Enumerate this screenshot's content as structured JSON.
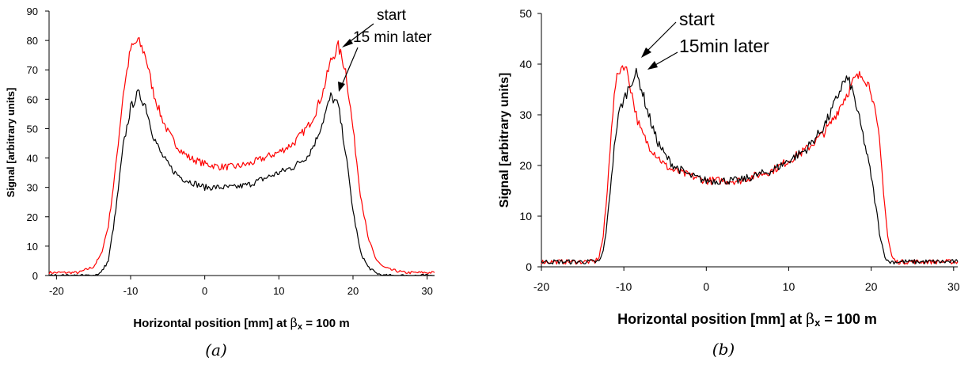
{
  "chart_data": [
    {
      "type": "line",
      "panel": "a",
      "caption": "(a)",
      "xlabel_main": "Horizontal position [mm] at ",
      "xlabel_beta": "β",
      "xlabel_sub": "x",
      "xlabel_tail": " = 100 m",
      "ylabel": "Signal [arbitrary units]",
      "xlim": [
        -21,
        31
      ],
      "ylim": [
        0,
        90
      ],
      "xticks": [
        "-20",
        "-10",
        "0",
        "10",
        "20",
        "30"
      ],
      "yticks": [
        "0",
        "10",
        "20",
        "30",
        "40",
        "50",
        "60",
        "70",
        "80",
        "90"
      ],
      "grid": false,
      "annotations": [
        "start",
        "15 min later"
      ],
      "series": [
        {
          "name": "start",
          "color": "#ff0000",
          "x": [
            -21,
            -17,
            -15,
            -14,
            -13,
            -12,
            -11,
            -10,
            -9,
            -8,
            -7,
            -6,
            -5,
            -4,
            -3,
            -2,
            0,
            2,
            4,
            6,
            8,
            10,
            12,
            14,
            15,
            16,
            17,
            18,
            19,
            20,
            21,
            22,
            23,
            24,
            25,
            27,
            31
          ],
          "y": [
            1,
            1,
            3,
            7,
            17,
            37,
            62,
            77,
            80,
            75,
            63,
            55,
            49,
            45,
            42,
            40,
            38,
            37,
            37,
            38,
            40,
            42,
            45,
            51,
            56,
            63,
            73,
            78,
            70,
            50,
            28,
            13,
            6,
            3,
            2,
            1,
            1
          ]
        },
        {
          "name": "15 min later",
          "color": "#000000",
          "x": [
            -21,
            -15,
            -14,
            -13,
            -12,
            -11,
            -10,
            -9,
            -8,
            -7,
            -6,
            -5,
            -4,
            -3,
            -2,
            0,
            2,
            4,
            6,
            8,
            10,
            12,
            14,
            15,
            16,
            17,
            18,
            19,
            20,
            21,
            22,
            23,
            24,
            31
          ],
          "y": [
            0,
            0,
            1,
            5,
            22,
            44,
            57,
            62,
            58,
            48,
            42,
            38,
            35,
            33,
            32,
            30,
            30,
            30,
            31,
            33,
            35,
            37,
            41,
            46,
            53,
            61,
            58,
            42,
            22,
            8,
            3,
            1,
            0,
            0
          ]
        }
      ]
    },
    {
      "type": "line",
      "panel": "b",
      "caption": "(b)",
      "xlabel_main": "Horizontal position [mm] at ",
      "xlabel_beta": "β",
      "xlabel_sub": "x",
      "xlabel_tail": " = 100 m",
      "ylabel": "Signal [arbitrary units]",
      "xlim": [
        -20,
        30.5
      ],
      "ylim": [
        0,
        50
      ],
      "xticks": [
        "-20",
        "-10",
        "0",
        "10",
        "20",
        "30"
      ],
      "yticks": [
        "0",
        "10",
        "20",
        "30",
        "40",
        "50"
      ],
      "grid": false,
      "annotations": [
        "start",
        "15min later"
      ],
      "series": [
        {
          "name": "start",
          "color": "#ff0000",
          "x": [
            -20,
            -13.5,
            -13,
            -12.5,
            -12,
            -11.5,
            -11,
            -10.5,
            -10,
            -9.5,
            -9,
            -8.5,
            -8,
            -7,
            -6,
            -5,
            -4,
            -2,
            0,
            2,
            4,
            6,
            8,
            10,
            12,
            14,
            15,
            16,
            17,
            18,
            19,
            20,
            21,
            21.5,
            22,
            22.5,
            23,
            30.5
          ],
          "y": [
            1,
            1,
            2,
            6,
            15,
            28,
            36,
            39,
            40,
            38,
            34,
            30,
            27,
            24,
            22,
            20,
            19,
            18,
            17,
            17,
            17,
            18,
            19,
            21,
            23,
            26,
            28,
            31,
            34,
            37,
            38,
            35,
            25,
            15,
            6,
            2,
            1,
            1
          ]
        },
        {
          "name": "15min later",
          "color": "#000000",
          "x": [
            -20,
            -13,
            -12.5,
            -12,
            -11.5,
            -11,
            -10.5,
            -10,
            -9.5,
            -9,
            -8.5,
            -8,
            -7,
            -6,
            -5,
            -4,
            -2,
            0,
            2,
            4,
            6,
            8,
            10,
            12,
            14,
            15,
            16,
            16.5,
            17,
            17.5,
            18,
            19,
            20,
            21,
            21.5,
            22,
            30.5
          ],
          "y": [
            1,
            1,
            3,
            9,
            18,
            26,
            31,
            33,
            35,
            37,
            38,
            36,
            30,
            25,
            22,
            20,
            18,
            17,
            17,
            17,
            18,
            19,
            21,
            23,
            27,
            30,
            34,
            36,
            37,
            36,
            33,
            26,
            18,
            7,
            3,
            1,
            1
          ]
        }
      ]
    }
  ]
}
